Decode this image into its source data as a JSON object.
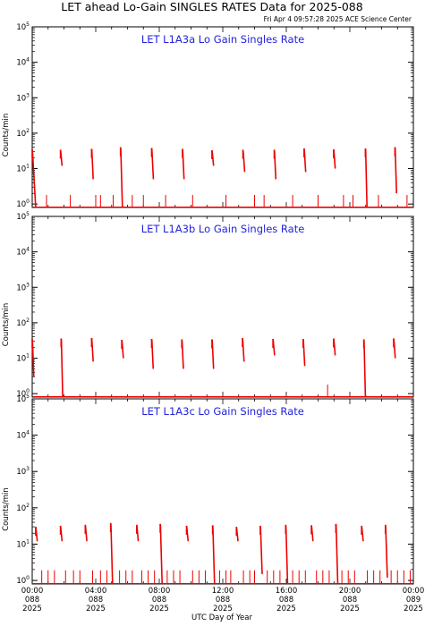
{
  "title": "LET ahead Lo-Gain SINGLES RATES Data for 2025-088",
  "timestamp": "Fri Apr  4 09:57:28 2025 ACE Science Center",
  "colors": {
    "data": "#ee0000",
    "panel_title": "#2222dd",
    "axes": "#000000"
  },
  "xlabel": "UTC Day of Year",
  "x_ticks": [
    {
      "time": "00:00",
      "doy": "088",
      "year": "2025"
    },
    {
      "time": "04:00",
      "doy": "088",
      "year": "2025"
    },
    {
      "time": "08:00",
      "doy": "088",
      "year": "2025"
    },
    {
      "time": "12:00",
      "doy": "088",
      "year": "2025"
    },
    {
      "time": "16:00",
      "doy": "088",
      "year": "2025"
    },
    {
      "time": "20:00",
      "doy": "088",
      "year": "2025"
    },
    {
      "time": "00:00",
      "doy": "089",
      "year": "2025"
    }
  ],
  "y_tick_base": "10",
  "y_tick_exps": [
    "0",
    "1",
    "2",
    "3",
    "4",
    "5"
  ],
  "chart_data": [
    {
      "type": "line",
      "title": "LET L1A3a Lo Gain Singles Rate",
      "ylabel": "Counts/min",
      "yscale": "log",
      "ylim": [
        0.8,
        100000
      ],
      "xlim": [
        0,
        24
      ],
      "x_unit": "hours UTC",
      "grid": false,
      "peaks": [
        {
          "start": 0.0,
          "end": 0.22,
          "top": 35,
          "bottom": 0.8
        },
        {
          "start": 1.78,
          "end": 1.88,
          "top": 34,
          "bottom": 12
        },
        {
          "start": 3.74,
          "end": 3.84,
          "top": 36,
          "bottom": 5
        },
        {
          "start": 5.56,
          "end": 5.68,
          "top": 40,
          "bottom": 0.8
        },
        {
          "start": 7.52,
          "end": 7.63,
          "top": 38,
          "bottom": 5
        },
        {
          "start": 9.46,
          "end": 9.56,
          "top": 36,
          "bottom": 5
        },
        {
          "start": 11.32,
          "end": 11.42,
          "top": 33,
          "bottom": 12
        },
        {
          "start": 13.27,
          "end": 13.38,
          "top": 34,
          "bottom": 8
        },
        {
          "start": 15.24,
          "end": 15.34,
          "top": 34,
          "bottom": 5
        },
        {
          "start": 17.12,
          "end": 17.22,
          "top": 37,
          "bottom": 8
        },
        {
          "start": 18.98,
          "end": 19.08,
          "top": 35,
          "bottom": 10
        },
        {
          "start": 20.98,
          "end": 21.08,
          "top": 37,
          "bottom": 0.8
        },
        {
          "start": 22.84,
          "end": 22.94,
          "top": 40,
          "bottom": 2
        }
      ],
      "spikes": [
        {
          "t": 0.9,
          "v": 1.8
        },
        {
          "t": 2.4,
          "v": 1.8
        },
        {
          "t": 4.0,
          "v": 1.8
        },
        {
          "t": 4.3,
          "v": 1.8
        },
        {
          "t": 5.1,
          "v": 1.8
        },
        {
          "t": 6.3,
          "v": 1.8
        },
        {
          "t": 7.0,
          "v": 1.8
        },
        {
          "t": 8.4,
          "v": 1.8
        },
        {
          "t": 10.1,
          "v": 1.8
        },
        {
          "t": 12.2,
          "v": 1.8
        },
        {
          "t": 14.0,
          "v": 1.8
        },
        {
          "t": 14.6,
          "v": 1.8
        },
        {
          "t": 16.4,
          "v": 1.8
        },
        {
          "t": 18.0,
          "v": 1.8
        },
        {
          "t": 19.6,
          "v": 1.8
        },
        {
          "t": 20.2,
          "v": 1.8
        },
        {
          "t": 21.8,
          "v": 1.8
        },
        {
          "t": 23.6,
          "v": 1.8
        }
      ],
      "baseline": 0.82
    },
    {
      "type": "line",
      "title": "LET L1A3b Lo Gain Singles Rate",
      "ylabel": "Counts/min",
      "yscale": "log",
      "ylim": [
        0.8,
        100000
      ],
      "xlim": [
        0,
        24
      ],
      "x_unit": "hours UTC",
      "grid": false,
      "peaks": [
        {
          "start": 0.0,
          "end": 0.1,
          "top": 35,
          "bottom": 3
        },
        {
          "start": 1.82,
          "end": 1.92,
          "top": 36,
          "bottom": 0.8
        },
        {
          "start": 3.74,
          "end": 3.84,
          "top": 37,
          "bottom": 8
        },
        {
          "start": 5.64,
          "end": 5.74,
          "top": 33,
          "bottom": 10
        },
        {
          "start": 7.52,
          "end": 7.62,
          "top": 35,
          "bottom": 5
        },
        {
          "start": 9.42,
          "end": 9.52,
          "top": 34,
          "bottom": 5
        },
        {
          "start": 11.32,
          "end": 11.42,
          "top": 34,
          "bottom": 5
        },
        {
          "start": 13.24,
          "end": 13.34,
          "top": 37,
          "bottom": 8
        },
        {
          "start": 15.16,
          "end": 15.26,
          "top": 35,
          "bottom": 12
        },
        {
          "start": 17.06,
          "end": 17.16,
          "top": 35,
          "bottom": 6
        },
        {
          "start": 18.98,
          "end": 19.08,
          "top": 36,
          "bottom": 12
        },
        {
          "start": 20.88,
          "end": 20.98,
          "top": 34,
          "bottom": 0.8
        },
        {
          "start": 22.76,
          "end": 22.86,
          "top": 36,
          "bottom": 10
        }
      ],
      "spikes": [
        {
          "t": 18.6,
          "v": 1.8
        }
      ],
      "baseline": 0.82
    },
    {
      "type": "line",
      "title": "LET L1A3c Lo Gain Singles Rate",
      "ylabel": "Counts/min",
      "yscale": "log",
      "ylim": [
        0.8,
        100000
      ],
      "xlim": [
        0,
        24
      ],
      "x_unit": "hours UTC",
      "grid": false,
      "peaks": [
        {
          "start": 0.22,
          "end": 0.32,
          "top": 30,
          "bottom": 12
        },
        {
          "start": 1.78,
          "end": 1.88,
          "top": 32,
          "bottom": 12
        },
        {
          "start": 3.34,
          "end": 3.44,
          "top": 34,
          "bottom": 12
        },
        {
          "start": 4.94,
          "end": 5.06,
          "top": 38,
          "bottom": 0.8
        },
        {
          "start": 6.58,
          "end": 6.68,
          "top": 34,
          "bottom": 12
        },
        {
          "start": 8.06,
          "end": 8.18,
          "top": 36,
          "bottom": 0.8
        },
        {
          "start": 9.72,
          "end": 9.82,
          "top": 32,
          "bottom": 12
        },
        {
          "start": 11.36,
          "end": 11.48,
          "top": 33,
          "bottom": 0.8
        },
        {
          "start": 12.86,
          "end": 12.96,
          "top": 30,
          "bottom": 12
        },
        {
          "start": 14.36,
          "end": 14.48,
          "top": 32,
          "bottom": 1.5
        },
        {
          "start": 15.96,
          "end": 16.08,
          "top": 34,
          "bottom": 0.8
        },
        {
          "start": 17.58,
          "end": 17.68,
          "top": 33,
          "bottom": 12
        },
        {
          "start": 19.12,
          "end": 19.24,
          "top": 36,
          "bottom": 0.8
        },
        {
          "start": 20.74,
          "end": 20.84,
          "top": 32,
          "bottom": 12
        },
        {
          "start": 22.24,
          "end": 22.36,
          "top": 34,
          "bottom": 1.2
        }
      ],
      "spikes": [
        {
          "t": 0.6,
          "v": 1.9
        },
        {
          "t": 1.0,
          "v": 1.9
        },
        {
          "t": 1.4,
          "v": 1.9
        },
        {
          "t": 2.1,
          "v": 1.9
        },
        {
          "t": 2.6,
          "v": 1.9
        },
        {
          "t": 3.0,
          "v": 1.9
        },
        {
          "t": 3.8,
          "v": 1.9
        },
        {
          "t": 4.3,
          "v": 1.9
        },
        {
          "t": 4.7,
          "v": 1.9
        },
        {
          "t": 5.5,
          "v": 1.9
        },
        {
          "t": 5.9,
          "v": 1.9
        },
        {
          "t": 6.3,
          "v": 1.9
        },
        {
          "t": 6.9,
          "v": 1.9
        },
        {
          "t": 7.3,
          "v": 1.9
        },
        {
          "t": 7.7,
          "v": 1.9
        },
        {
          "t": 8.5,
          "v": 1.9
        },
        {
          "t": 8.9,
          "v": 1.9
        },
        {
          "t": 9.3,
          "v": 1.9
        },
        {
          "t": 10.1,
          "v": 1.9
        },
        {
          "t": 10.5,
          "v": 1.9
        },
        {
          "t": 10.9,
          "v": 1.9
        },
        {
          "t": 11.8,
          "v": 1.9
        },
        {
          "t": 12.2,
          "v": 1.9
        },
        {
          "t": 12.5,
          "v": 1.9
        },
        {
          "t": 13.3,
          "v": 1.9
        },
        {
          "t": 13.7,
          "v": 1.9
        },
        {
          "t": 14.0,
          "v": 1.9
        },
        {
          "t": 14.8,
          "v": 1.9
        },
        {
          "t": 15.2,
          "v": 1.9
        },
        {
          "t": 15.6,
          "v": 1.9
        },
        {
          "t": 16.4,
          "v": 1.9
        },
        {
          "t": 16.8,
          "v": 1.9
        },
        {
          "t": 17.2,
          "v": 1.9
        },
        {
          "t": 17.9,
          "v": 1.9
        },
        {
          "t": 18.3,
          "v": 1.9
        },
        {
          "t": 18.7,
          "v": 1.9
        },
        {
          "t": 19.5,
          "v": 1.9
        },
        {
          "t": 19.9,
          "v": 1.9
        },
        {
          "t": 20.3,
          "v": 1.9
        },
        {
          "t": 21.1,
          "v": 1.9
        },
        {
          "t": 21.5,
          "v": 1.9
        },
        {
          "t": 21.9,
          "v": 1.9
        },
        {
          "t": 22.6,
          "v": 1.9
        },
        {
          "t": 23.0,
          "v": 1.9
        },
        {
          "t": 23.4,
          "v": 1.9
        },
        {
          "t": 23.8,
          "v": 1.9
        }
      ],
      "baseline": 0.82
    }
  ]
}
